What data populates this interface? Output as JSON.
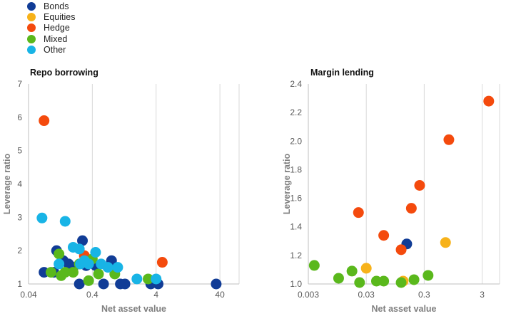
{
  "legend": {
    "items": [
      {
        "label": "Bonds",
        "color": "#113c96"
      },
      {
        "label": "Equities",
        "color": "#f7b21a"
      },
      {
        "label": "Hedge",
        "color": "#f44a0d"
      },
      {
        "label": "Mixed",
        "color": "#5ab81c"
      },
      {
        "label": "Other",
        "color": "#18b4e6"
      }
    ]
  },
  "chart_data": [
    {
      "type": "scatter",
      "title": "Repo borrowing",
      "xlabel": "Net asset value",
      "ylabel": "Leverage ratio",
      "x_scale": "log",
      "xlim": [
        0.04,
        80
      ],
      "ylim": [
        1,
        7
      ],
      "x_ticks": [
        "0.04",
        "0.4",
        "4",
        "40"
      ],
      "y_ticks": [
        "1",
        "2",
        "3",
        "4",
        "5",
        "6",
        "7"
      ],
      "grid": "vertical",
      "legend_position": "top-left",
      "series": [
        {
          "name": "Bonds",
          "points": [
            [
              0.07,
              1.35
            ],
            [
              0.1,
              1.35
            ],
            [
              0.11,
              2.0
            ],
            [
              0.14,
              1.7
            ],
            [
              0.17,
              1.6
            ],
            [
              0.2,
              1.5
            ],
            [
              0.25,
              1.0
            ],
            [
              0.28,
              2.3
            ],
            [
              0.32,
              1.55
            ],
            [
              0.45,
              1.55
            ],
            [
              0.6,
              1.0
            ],
            [
              0.8,
              1.7
            ],
            [
              0.9,
              1.5
            ],
            [
              1.1,
              1.0
            ],
            [
              1.3,
              1.0
            ],
            [
              3.3,
              1.0
            ],
            [
              4.3,
              1.0
            ],
            [
              35.0,
              1.0
            ]
          ]
        },
        {
          "name": "Hedge",
          "points": [
            [
              0.07,
              5.9
            ],
            [
              0.3,
              1.85
            ],
            [
              5.0,
              1.65
            ]
          ]
        },
        {
          "name": "Mixed",
          "points": [
            [
              0.09,
              1.35
            ],
            [
              0.12,
              1.9
            ],
            [
              0.13,
              1.25
            ],
            [
              0.15,
              1.35
            ],
            [
              0.2,
              1.35
            ],
            [
              0.25,
              1.6
            ],
            [
              0.35,
              1.1
            ],
            [
              0.4,
              1.75
            ],
            [
              0.5,
              1.3
            ],
            [
              0.9,
              1.3
            ],
            [
              3.0,
              1.15
            ]
          ]
        },
        {
          "name": "Other",
          "points": [
            [
              0.065,
              2.98
            ],
            [
              0.12,
              1.6
            ],
            [
              0.15,
              2.88
            ],
            [
              0.2,
              2.1
            ],
            [
              0.25,
              2.05
            ],
            [
              0.26,
              1.6
            ],
            [
              0.3,
              1.7
            ],
            [
              0.35,
              1.6
            ],
            [
              0.45,
              1.95
            ],
            [
              0.55,
              1.6
            ],
            [
              0.7,
              1.5
            ],
            [
              1.0,
              1.5
            ],
            [
              2.0,
              1.15
            ],
            [
              4.0,
              1.15
            ]
          ]
        }
      ]
    },
    {
      "type": "scatter",
      "title": "Margin lending",
      "xlabel": "Net asset value",
      "ylabel": "Leverage ratio",
      "x_scale": "log",
      "xlim": [
        0.003,
        6
      ],
      "ylim": [
        1.0,
        2.4
      ],
      "x_ticks": [
        "0.003",
        "0.03",
        "0.3",
        "3"
      ],
      "y_ticks": [
        "1.0",
        "1.2",
        "1.4",
        "1.6",
        "1.8",
        "2.0",
        "2.2",
        "2.4"
      ],
      "grid": "vertical",
      "series": [
        {
          "name": "Bonds",
          "points": [
            [
              0.15,
              1.28
            ]
          ]
        },
        {
          "name": "Equities",
          "points": [
            [
              0.03,
              1.11
            ],
            [
              0.13,
              1.02
            ],
            [
              0.7,
              1.29
            ]
          ]
        },
        {
          "name": "Hedge",
          "points": [
            [
              0.022,
              1.5
            ],
            [
              0.06,
              1.34
            ],
            [
              0.12,
              1.24
            ],
            [
              0.18,
              1.53
            ],
            [
              0.25,
              1.69
            ],
            [
              0.8,
              2.01
            ],
            [
              3.9,
              2.28
            ]
          ]
        },
        {
          "name": "Mixed",
          "points": [
            [
              0.0038,
              1.13
            ],
            [
              0.01,
              1.04
            ],
            [
              0.017,
              1.09
            ],
            [
              0.023,
              1.01
            ],
            [
              0.045,
              1.02
            ],
            [
              0.06,
              1.02
            ],
            [
              0.12,
              1.01
            ],
            [
              0.2,
              1.03
            ],
            [
              0.35,
              1.06
            ]
          ]
        }
      ]
    }
  ]
}
